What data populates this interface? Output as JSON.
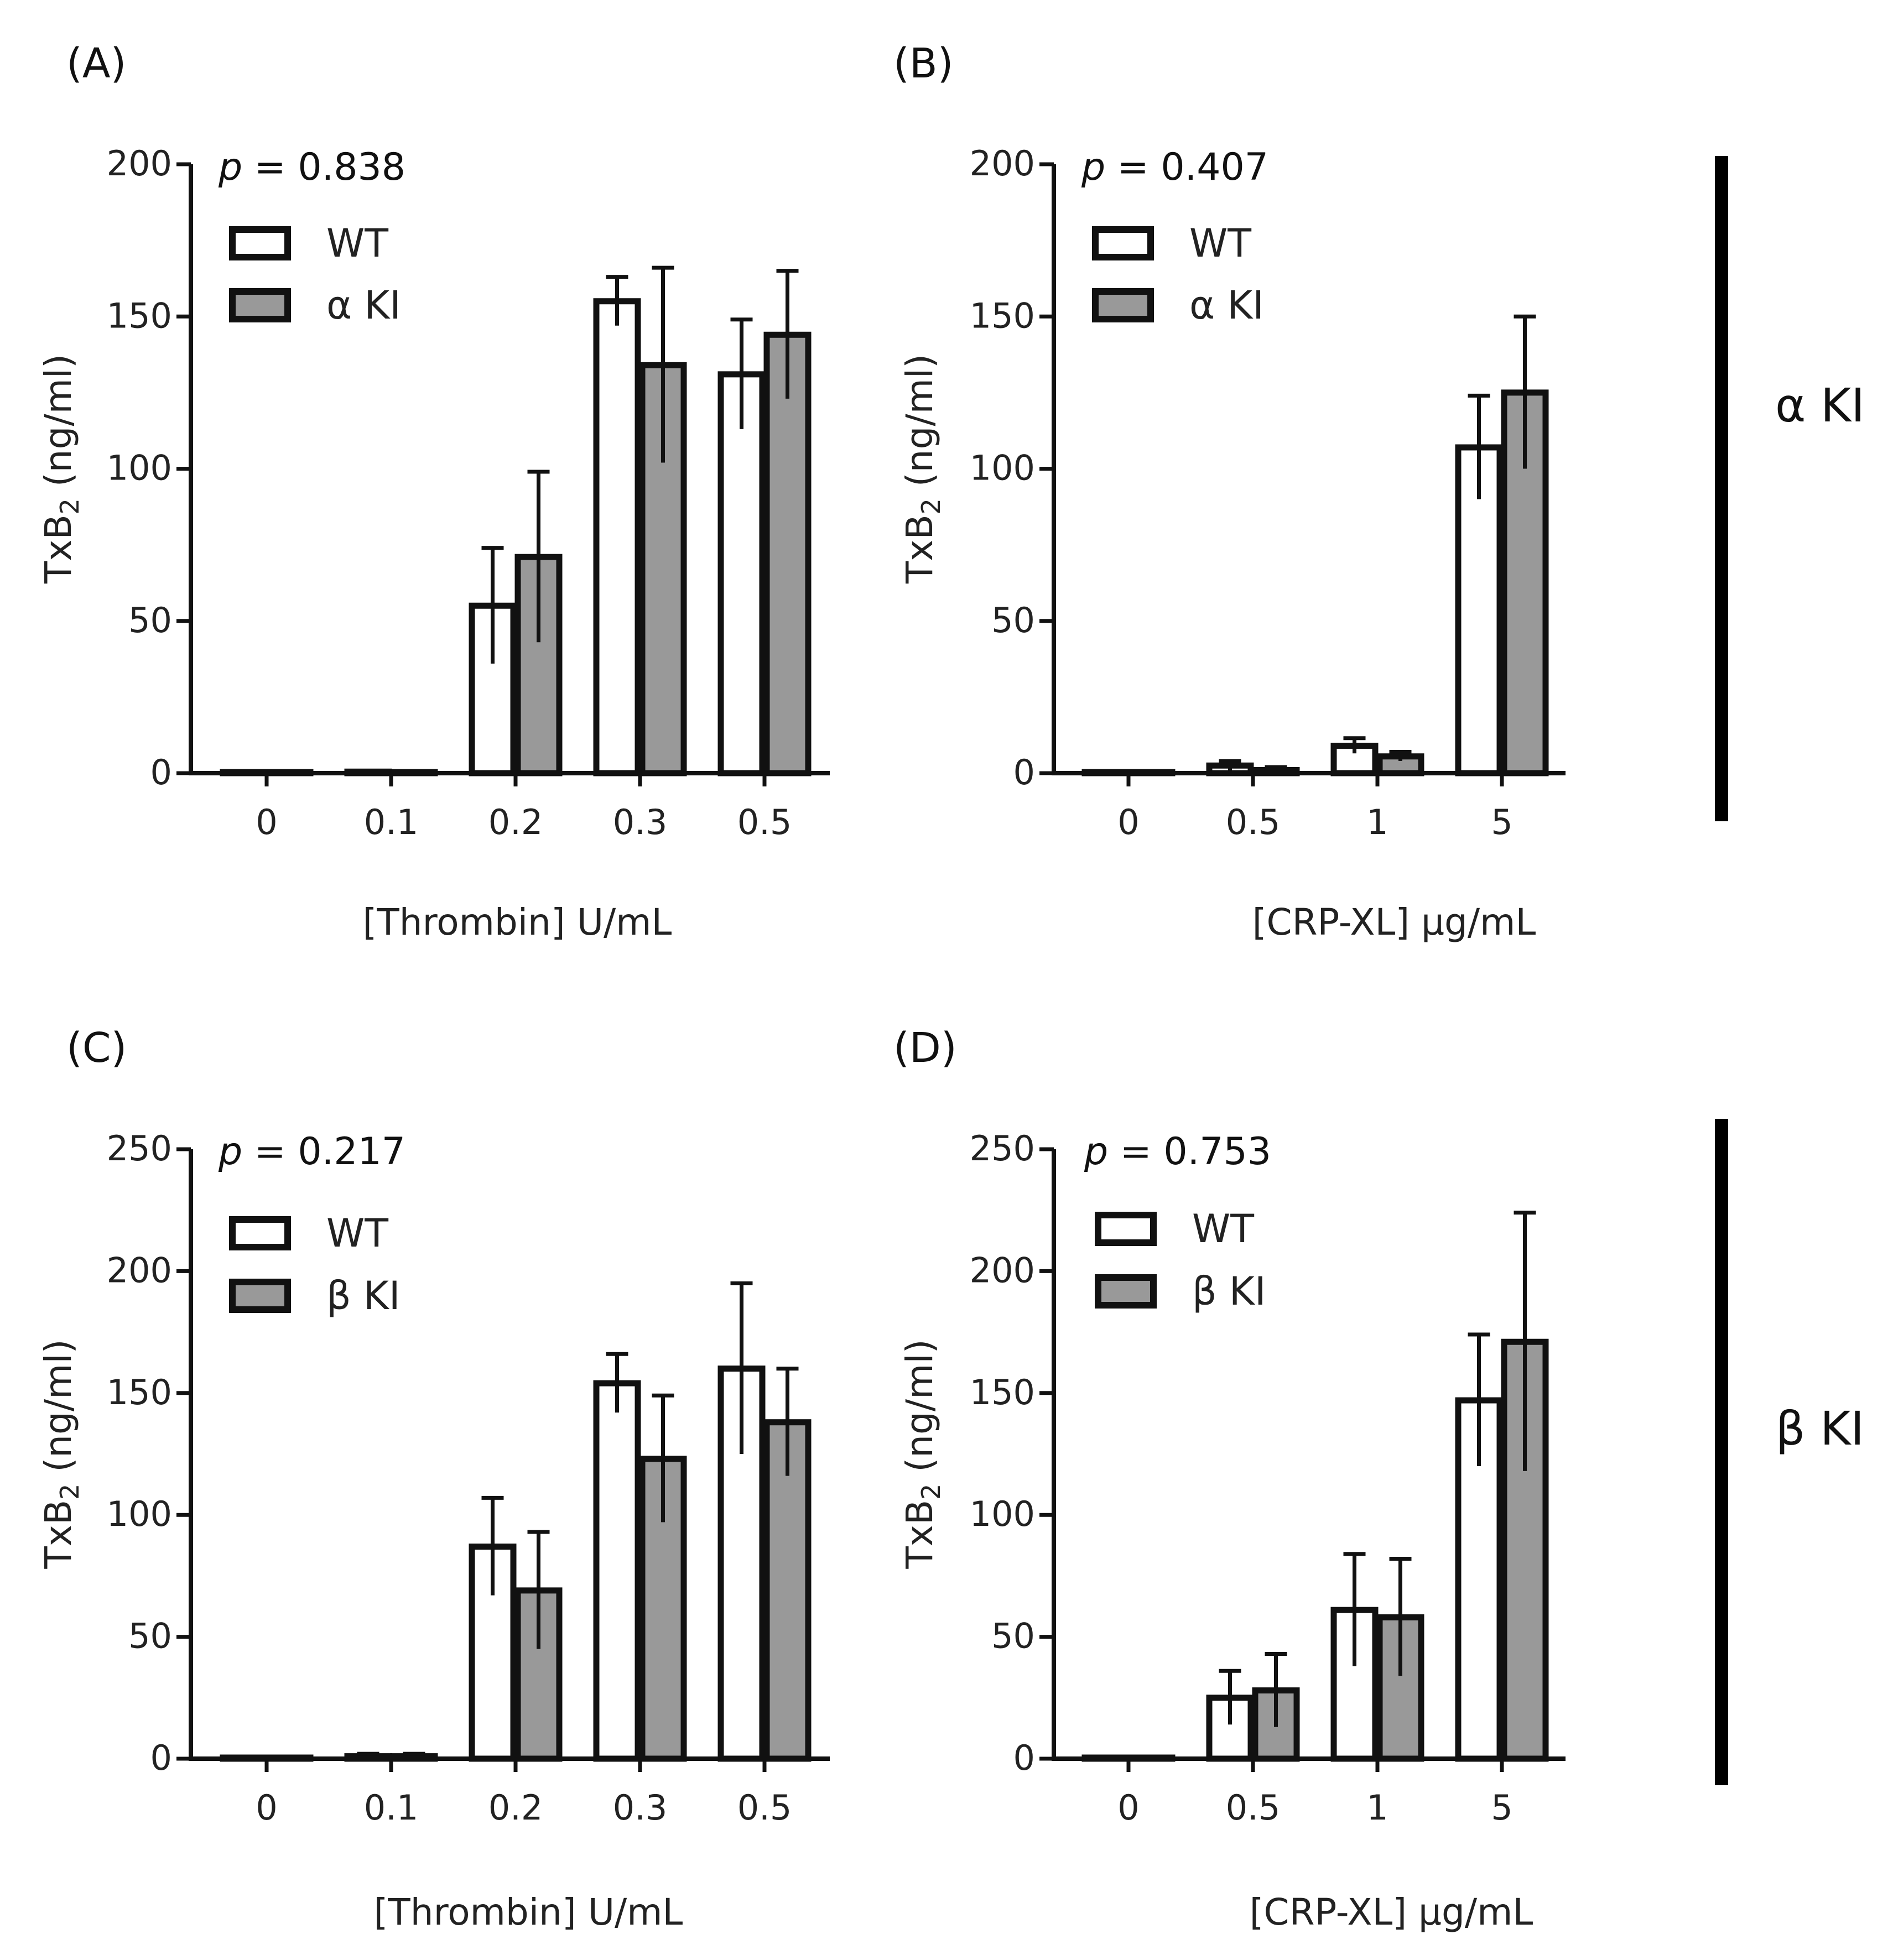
{
  "chart_data": [
    {
      "id": "A",
      "type": "bar",
      "panel_label": "(A)",
      "p_label": "p",
      "p_value": "= 0.838",
      "ylabel_main": "TxB",
      "ylabel_sub": "2",
      "ylabel_tail": " (ng/ml)",
      "xlabel": "[Thrombin] U/mL",
      "ylim": [
        0,
        200
      ],
      "yticks": [
        "0",
        "50",
        "100",
        "150",
        "200"
      ],
      "categories": [
        "0",
        "0.1",
        "0.2",
        "0.3",
        "0.5"
      ],
      "series": [
        {
          "name": "WT",
          "color": "#ffffff",
          "values": [
            0,
            0.5,
            55,
            155,
            131
          ],
          "errors": [
            0,
            0,
            19,
            8,
            18
          ]
        },
        {
          "name": "α KI",
          "color": "#999999",
          "values": [
            0,
            0,
            71,
            134,
            144
          ],
          "errors": [
            0,
            0,
            28,
            32,
            21
          ]
        }
      ]
    },
    {
      "id": "B",
      "type": "bar",
      "panel_label": "(B)",
      "p_label": "p",
      "p_value": "= 0.407",
      "ylabel_main": "TxB",
      "ylabel_sub": "2",
      "ylabel_tail": " (ng/ml)",
      "xlabel": "[CRP-XL] μg/mL",
      "ylim": [
        0,
        200
      ],
      "yticks": [
        "0",
        "50",
        "100",
        "150",
        "200"
      ],
      "categories": [
        "0",
        "0.5",
        "1",
        "5"
      ],
      "series": [
        {
          "name": "WT",
          "color": "#ffffff",
          "values": [
            0,
            2.5,
            9,
            107
          ],
          "errors": [
            0,
            1.5,
            2.5,
            17
          ]
        },
        {
          "name": "α KI",
          "color": "#999999",
          "values": [
            0,
            1,
            5.5,
            125
          ],
          "errors": [
            0,
            1,
            1.5,
            25
          ]
        }
      ]
    },
    {
      "id": "C",
      "type": "bar",
      "panel_label": "(C)",
      "p_label": "p",
      "p_value": "= 0.217",
      "ylabel_main": "TxB",
      "ylabel_sub": "2",
      "ylabel_tail": " (ng/ml)",
      "xlabel": "[Thrombin] U/mL",
      "ylim": [
        0,
        250
      ],
      "yticks": [
        "0",
        "50",
        "100",
        "150",
        "200",
        "250"
      ],
      "categories": [
        "0",
        "0.1",
        "0.2",
        "0.3",
        "0.5"
      ],
      "series": [
        {
          "name": "WT",
          "color": "#ffffff",
          "values": [
            0,
            1,
            87,
            154,
            160
          ],
          "errors": [
            0,
            1,
            20,
            12,
            35
          ]
        },
        {
          "name": "β KI",
          "color": "#999999",
          "values": [
            0,
            1,
            69,
            123,
            138
          ],
          "errors": [
            0,
            1,
            24,
            26,
            22
          ]
        }
      ]
    },
    {
      "id": "D",
      "type": "bar",
      "panel_label": "(D)",
      "p_label": "p",
      "p_value": "= 0.753",
      "ylabel_main": "TxB",
      "ylabel_sub": "2",
      "ylabel_tail": " (ng/ml)",
      "xlabel": "[CRP-XL] μg/mL",
      "ylim": [
        0,
        250
      ],
      "yticks": [
        "0",
        "50",
        "100",
        "150",
        "200",
        "250"
      ],
      "categories": [
        "0",
        "0.5",
        "1",
        "5"
      ],
      "series": [
        {
          "name": "WT",
          "color": "#ffffff",
          "values": [
            0,
            25,
            61,
            147
          ],
          "errors": [
            0,
            11,
            23,
            27
          ]
        },
        {
          "name": "β KI",
          "color": "#999999",
          "values": [
            0,
            28,
            58,
            171
          ],
          "errors": [
            0,
            15,
            24,
            53
          ]
        }
      ]
    }
  ],
  "side_labels": [
    "α KI",
    "β KI"
  ],
  "colors": {
    "axis": "#111111",
    "wt_fill": "#ffffff",
    "ki_fill": "#999999"
  }
}
